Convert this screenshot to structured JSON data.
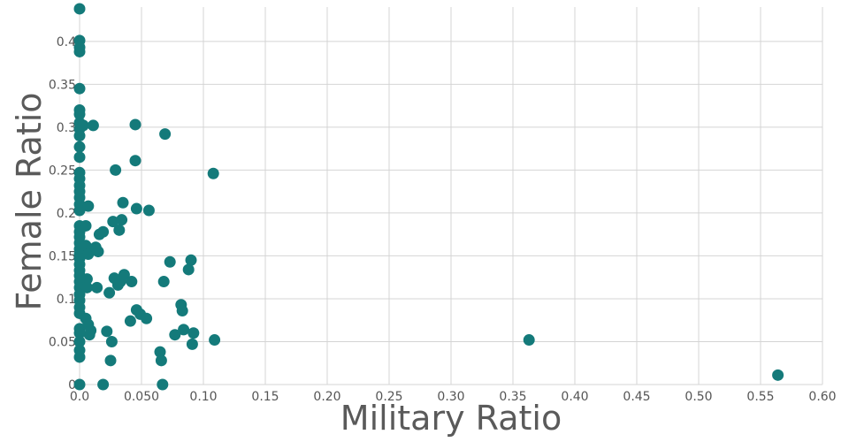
{
  "colors": {
    "point": "#147a7a",
    "grid": "#d4d4d4",
    "text": "#555555"
  },
  "chart_data": {
    "type": "scatter",
    "xlabel": "Military Ratio",
    "ylabel": "Female Ratio",
    "xlim": [
      0,
      0.6
    ],
    "ylim": [
      0,
      0.44
    ],
    "grid": true,
    "x_ticks": [
      {
        "value": 0,
        "label": "0.0"
      },
      {
        "value": 0.05,
        "label": "0.050"
      },
      {
        "value": 0.1,
        "label": "0.10"
      },
      {
        "value": 0.15,
        "label": "0.15"
      },
      {
        "value": 0.2,
        "label": "0.20"
      },
      {
        "value": 0.25,
        "label": "0.25"
      },
      {
        "value": 0.3,
        "label": "0.30"
      },
      {
        "value": 0.35,
        "label": "0.35"
      },
      {
        "value": 0.4,
        "label": "0.40"
      },
      {
        "value": 0.45,
        "label": "0.45"
      },
      {
        "value": 0.5,
        "label": "0.50"
      },
      {
        "value": 0.55,
        "label": "0.55"
      },
      {
        "value": 0.6,
        "label": "0.60"
      }
    ],
    "y_ticks": [
      {
        "value": 0,
        "label": "0"
      },
      {
        "value": 0.05,
        "label": "0.05"
      },
      {
        "value": 0.1,
        "label": "0.1"
      },
      {
        "value": 0.15,
        "label": "0.15"
      },
      {
        "value": 0.2,
        "label": "0.2"
      },
      {
        "value": 0.25,
        "label": "0.25"
      },
      {
        "value": 0.3,
        "label": "0.3"
      },
      {
        "value": 0.35,
        "label": "0.35"
      },
      {
        "value": 0.4,
        "label": "0.4"
      }
    ],
    "points": [
      [
        0,
        0.438
      ],
      [
        0,
        0.401
      ],
      [
        0,
        0.393
      ],
      [
        0,
        0.388
      ],
      [
        0,
        0.345
      ],
      [
        0,
        0.32
      ],
      [
        0,
        0.315
      ],
      [
        0,
        0.305
      ],
      [
        0,
        0.298
      ],
      [
        0,
        0.29
      ],
      [
        0,
        0.277
      ],
      [
        0,
        0.265
      ],
      [
        0,
        0.247
      ],
      [
        0,
        0.24
      ],
      [
        0,
        0.232
      ],
      [
        0,
        0.225
      ],
      [
        0,
        0.218
      ],
      [
        0,
        0.21
      ],
      [
        0,
        0.203
      ],
      [
        0,
        0.185
      ],
      [
        0,
        0.178
      ],
      [
        0,
        0.172
      ],
      [
        0,
        0.165
      ],
      [
        0,
        0.158
      ],
      [
        0,
        0.152
      ],
      [
        0,
        0.147
      ],
      [
        0,
        0.14
      ],
      [
        0,
        0.133
      ],
      [
        0,
        0.127
      ],
      [
        0,
        0.12
      ],
      [
        0,
        0.113
      ],
      [
        0,
        0.105
      ],
      [
        0,
        0.098
      ],
      [
        0,
        0.09
      ],
      [
        0,
        0.083
      ],
      [
        0,
        0.065
      ],
      [
        0,
        0.06
      ],
      [
        0,
        0.05
      ],
      [
        0,
        0.04
      ],
      [
        0,
        0.032
      ],
      [
        0,
        0
      ],
      [
        0.003,
        0.302
      ],
      [
        0.005,
        0.185
      ],
      [
        0.007,
        0.208
      ],
      [
        0.005,
        0.162
      ],
      [
        0.007,
        0.152
      ],
      [
        0.006,
        0.123
      ],
      [
        0.006,
        0.113
      ],
      [
        0.005,
        0.077
      ],
      [
        0.007,
        0.07
      ],
      [
        0.009,
        0.063
      ],
      [
        0.008,
        0.058
      ],
      [
        0.011,
        0.302
      ],
      [
        0.013,
        0.16
      ],
      [
        0.014,
        0.113
      ],
      [
        0.015,
        0.155
      ],
      [
        0.016,
        0.175
      ],
      [
        0.019,
        0.178
      ],
      [
        0.019,
        0
      ],
      [
        0.022,
        0.062
      ],
      [
        0.024,
        0.107
      ],
      [
        0.025,
        0.028
      ],
      [
        0.026,
        0.05
      ],
      [
        0.027,
        0.19
      ],
      [
        0.028,
        0.124
      ],
      [
        0.029,
        0.25
      ],
      [
        0.031,
        0.116
      ],
      [
        0.032,
        0.18
      ],
      [
        0.033,
        0.12
      ],
      [
        0.034,
        0.192
      ],
      [
        0.035,
        0.212
      ],
      [
        0.036,
        0.128
      ],
      [
        0.041,
        0.074
      ],
      [
        0.042,
        0.12
      ],
      [
        0.045,
        0.303
      ],
      [
        0.045,
        0.261
      ],
      [
        0.046,
        0.205
      ],
      [
        0.046,
        0.087
      ],
      [
        0.049,
        0.082
      ],
      [
        0.054,
        0.077
      ],
      [
        0.056,
        0.203
      ],
      [
        0.065,
        0.038
      ],
      [
        0.066,
        0.028
      ],
      [
        0.067,
        0
      ],
      [
        0.068,
        0.12
      ],
      [
        0.069,
        0.292
      ],
      [
        0.073,
        0.143
      ],
      [
        0.077,
        0.058
      ],
      [
        0.082,
        0.093
      ],
      [
        0.083,
        0.086
      ],
      [
        0.084,
        0.064
      ],
      [
        0.088,
        0.134
      ],
      [
        0.09,
        0.145
      ],
      [
        0.091,
        0.047
      ],
      [
        0.092,
        0.06
      ],
      [
        0.108,
        0.246
      ],
      [
        0.109,
        0.052
      ],
      [
        0.363,
        0.052
      ],
      [
        0.564,
        0.011
      ]
    ]
  }
}
